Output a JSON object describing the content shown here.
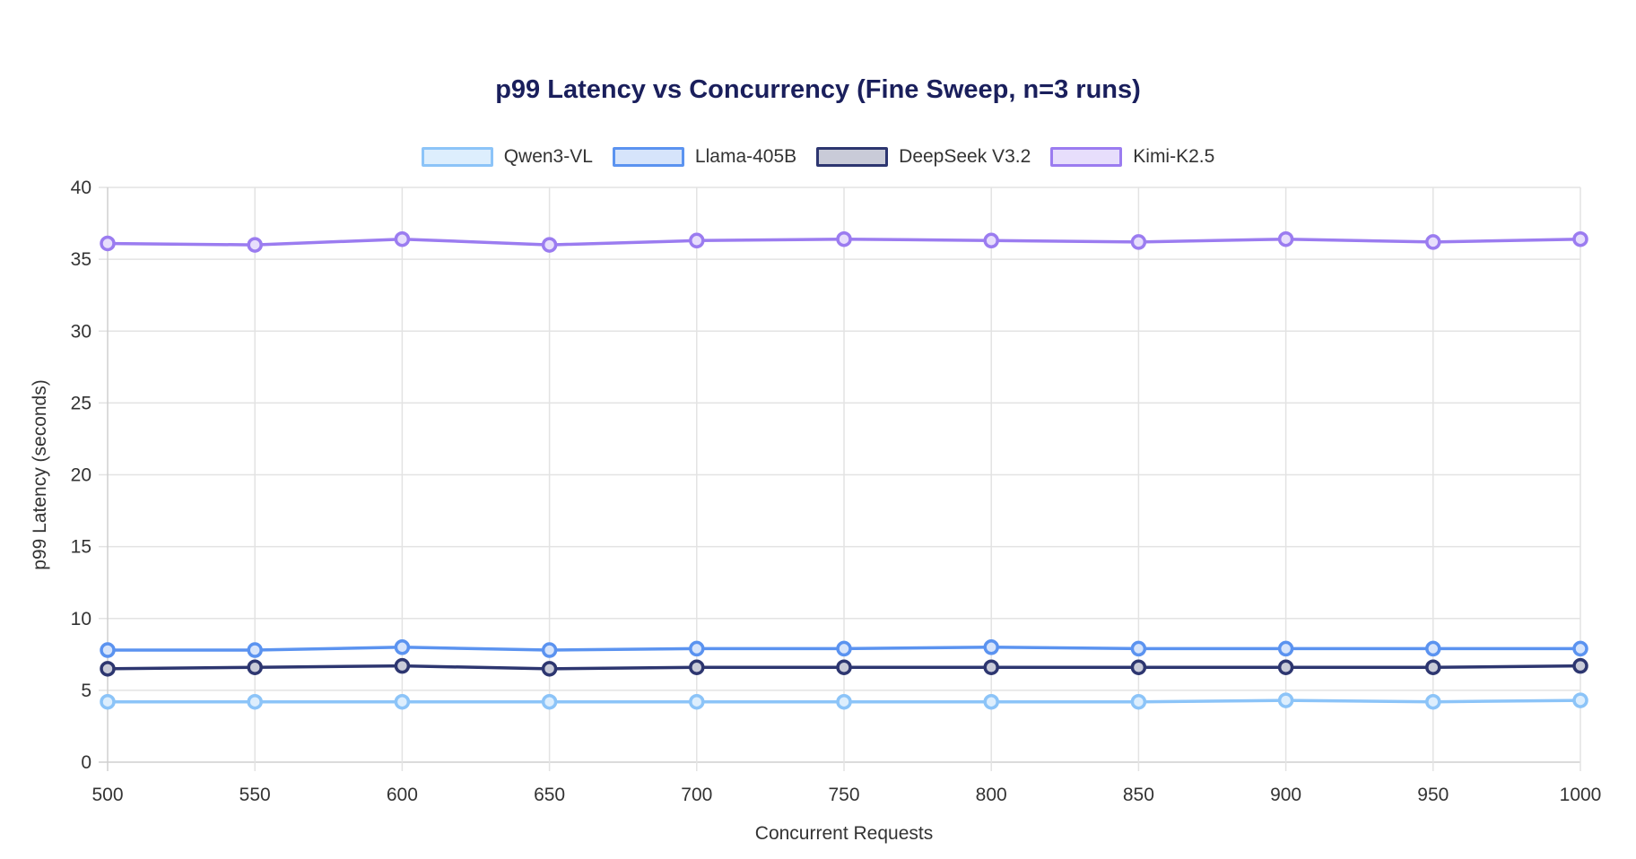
{
  "chart_data": {
    "type": "line",
    "title": "p99 Latency vs Concurrency (Fine Sweep, n=3 runs)",
    "xlabel": "Concurrent Requests",
    "ylabel": "p99 Latency (seconds)",
    "x": [
      500,
      550,
      600,
      650,
      700,
      750,
      800,
      850,
      900,
      950,
      1000
    ],
    "xlim": [
      500,
      1000
    ],
    "ylim": [
      0,
      40
    ],
    "yticks": [
      0,
      5,
      10,
      15,
      20,
      25,
      30,
      35,
      40
    ],
    "grid": true,
    "legend_position": "top",
    "series": [
      {
        "name": "Qwen3-VL",
        "color": "#8cc4f8",
        "fill": "#ddeefd",
        "values": [
          4.2,
          4.2,
          4.2,
          4.2,
          4.2,
          4.2,
          4.2,
          4.2,
          4.3,
          4.2,
          4.3
        ]
      },
      {
        "name": "Llama-405B",
        "color": "#5b93f0",
        "fill": "#d6e4fb",
        "values": [
          7.8,
          7.8,
          8.0,
          7.8,
          7.9,
          7.9,
          8.0,
          7.9,
          7.9,
          7.9,
          7.9
        ]
      },
      {
        "name": "DeepSeek V3.2",
        "color": "#2d3670",
        "fill": "#c9cbd8",
        "values": [
          6.5,
          6.6,
          6.7,
          6.5,
          6.6,
          6.6,
          6.6,
          6.6,
          6.6,
          6.6,
          6.7
        ]
      },
      {
        "name": "Kimi-K2.5",
        "color": "#9b7cf0",
        "fill": "#e7defc",
        "values": [
          36.1,
          36.0,
          36.4,
          36.0,
          36.3,
          36.4,
          36.3,
          36.2,
          36.4,
          36.2,
          36.4
        ]
      }
    ]
  }
}
